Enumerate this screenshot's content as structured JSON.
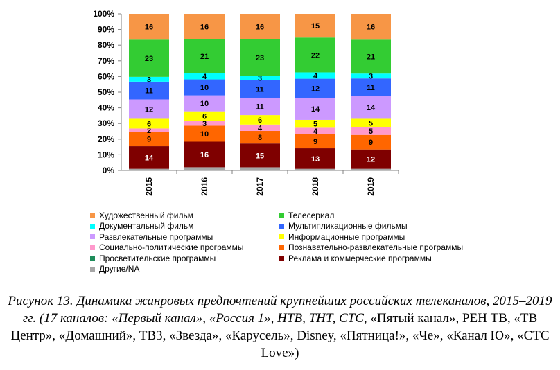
{
  "chart_data": {
    "type": "bar",
    "stacked": true,
    "percent_stacked": true,
    "categories": [
      "2015",
      "2016",
      "2017",
      "2018",
      "2019"
    ],
    "ylim": [
      0,
      100
    ],
    "y_ticks": [
      "0%",
      "10%",
      "20%",
      "30%",
      "40%",
      "50%",
      "60%",
      "70%",
      "80%",
      "90%",
      "100%"
    ],
    "grid": false,
    "legend_position": "bottom",
    "series": [
      {
        "name": "Другие/NA",
        "color": "#a6a6a6",
        "values": [
          1,
          2,
          2,
          1,
          1
        ],
        "labels": [
          "",
          "",
          "",
          "",
          ""
        ]
      },
      {
        "name": "Реклама и коммерческие программы",
        "color": "#7f0000",
        "values": [
          14,
          16,
          15,
          13,
          12
        ],
        "labels": [
          "14",
          "16",
          "15",
          "13",
          "12"
        ]
      },
      {
        "name": "Просветительские программы",
        "color": "#1e8c5a",
        "values": [
          0,
          0,
          0,
          0,
          0
        ],
        "labels": [
          "",
          "",
          "",
          "",
          ""
        ]
      },
      {
        "name": "Познавательно-развлекательные программы",
        "color": "#ff6600",
        "values": [
          9,
          10,
          8,
          9,
          9
        ],
        "labels": [
          "9",
          "10",
          "8",
          "9",
          "9"
        ]
      },
      {
        "name": "Социально-политические программы",
        "color": "#ff99cc",
        "values": [
          2,
          3,
          4,
          4,
          5
        ],
        "labels": [
          "2",
          "3",
          "4",
          "4",
          "5"
        ]
      },
      {
        "name": "Информационные программы",
        "color": "#ffff00",
        "values": [
          6,
          6,
          6,
          5,
          5
        ],
        "labels": [
          "6",
          "6",
          "6",
          "5",
          "5"
        ]
      },
      {
        "name": "Развлекательные программы",
        "color": "#cc99ff",
        "values": [
          12,
          10,
          11,
          14,
          14
        ],
        "labels": [
          "12",
          "10",
          "11",
          "14",
          "14"
        ]
      },
      {
        "name": "Мультипликационные фильмы",
        "color": "#3366ff",
        "values": [
          11,
          10,
          11,
          12,
          11
        ],
        "labels": [
          "11",
          "10",
          "11",
          "12",
          "11"
        ]
      },
      {
        "name": "Документальный фильм",
        "color": "#00ffff",
        "values": [
          3,
          4,
          3,
          4,
          3
        ],
        "labels": [
          "3",
          "4",
          "3",
          "4",
          "3"
        ]
      },
      {
        "name": "Телесериал",
        "color": "#33cc33",
        "values": [
          23,
          21,
          23,
          22,
          21
        ],
        "labels": [
          "23",
          "21",
          "23",
          "22",
          "21"
        ]
      },
      {
        "name": "Художественный фильм",
        "color": "#f79646",
        "values": [
          16,
          16,
          16,
          15,
          16
        ],
        "labels": [
          "16",
          "16",
          "16",
          "15",
          "16"
        ]
      }
    ],
    "legend_order": [
      "Художественный фильм",
      "Телесериал",
      "Документальный фильм",
      "Мультипликационные фильмы",
      "Развлекательные программы",
      "Информационные программы",
      "Социально-политические программы",
      "Познавательно-развлекательные программы",
      "Просветительские программы",
      "Реклама и коммерческие программы",
      "Другие/NA"
    ]
  },
  "caption": {
    "italic_part": "Рисунок 13. Динамика жанровых предпочтений крупнейших российских телеканалов, 2015–2019 гг. (17 каналов: «Первый канал», «Россия 1», НТВ, ТНТ, СТС,",
    "regular_part": "«Пятый канал», РЕН ТВ, «ТВ Центр», «Домашний», ТВ3, «Звезда», «Карусель», Disney, «Пятница!», «Че», «Канал Ю», «СТС Love»)"
  }
}
